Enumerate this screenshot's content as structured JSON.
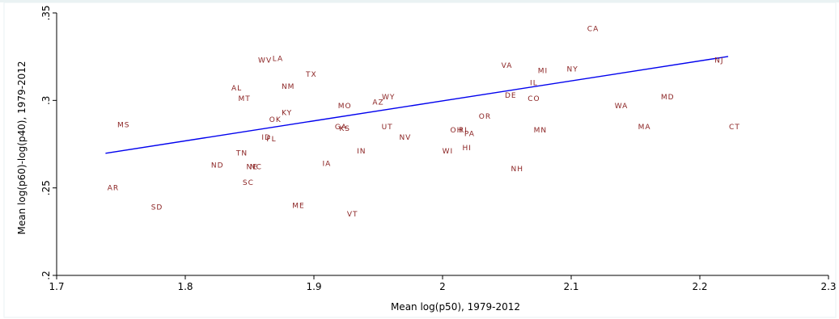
{
  "chart_data": {
    "type": "scatter",
    "title": "",
    "xlabel": "Mean log(p50), 1979-2012",
    "ylabel": "Mean log(p60)-log(p40), 1979-2012",
    "xlim": [
      1.7,
      2.3
    ],
    "ylim": [
      0.2,
      0.35
    ],
    "xticks": [
      1.7,
      1.8,
      1.9,
      2.0,
      2.1,
      2.2,
      2.3
    ],
    "xtick_labels": [
      "1.7",
      "1.8",
      "1.9",
      "2",
      "2.1",
      "2.2",
      "2.3"
    ],
    "yticks": [
      0.2,
      0.25,
      0.3,
      0.35
    ],
    "ytick_labels": [
      ".2",
      ".25",
      ".3",
      ".35"
    ],
    "grid": false,
    "legend": "none",
    "colors": {
      "markers": "#8b2323",
      "fit_line": "#0000ee",
      "axes": "#000000"
    },
    "points": [
      {
        "label": "CA",
        "x": 2.117,
        "y": 0.341
      },
      {
        "label": "NJ",
        "x": 2.215,
        "y": 0.323
      },
      {
        "label": "NY",
        "x": 2.101,
        "y": 0.318
      },
      {
        "label": "MI",
        "x": 2.078,
        "y": 0.317
      },
      {
        "label": "VA",
        "x": 2.05,
        "y": 0.32
      },
      {
        "label": "IL",
        "x": 2.071,
        "y": 0.31
      },
      {
        "label": "DE",
        "x": 2.053,
        "y": 0.303
      },
      {
        "label": "CO",
        "x": 2.071,
        "y": 0.301
      },
      {
        "label": "MD",
        "x": 2.175,
        "y": 0.302
      },
      {
        "label": "WA",
        "x": 2.139,
        "y": 0.297
      },
      {
        "label": "CT",
        "x": 2.227,
        "y": 0.285
      },
      {
        "label": "MA",
        "x": 2.157,
        "y": 0.285
      },
      {
        "label": "MN",
        "x": 2.076,
        "y": 0.283
      },
      {
        "label": "OR",
        "x": 2.033,
        "y": 0.291
      },
      {
        "label": "OH",
        "x": 2.011,
        "y": 0.283
      },
      {
        "label": "RI",
        "x": 2.016,
        "y": 0.283
      },
      {
        "label": "PA",
        "x": 2.021,
        "y": 0.281
      },
      {
        "label": "HI",
        "x": 2.019,
        "y": 0.273
      },
      {
        "label": "WI",
        "x": 2.004,
        "y": 0.271
      },
      {
        "label": "NH",
        "x": 2.058,
        "y": 0.261
      },
      {
        "label": "WY",
        "x": 1.958,
        "y": 0.302
      },
      {
        "label": "AZ",
        "x": 1.95,
        "y": 0.299
      },
      {
        "label": "UT",
        "x": 1.957,
        "y": 0.285
      },
      {
        "label": "NV",
        "x": 1.971,
        "y": 0.279
      },
      {
        "label": "IN",
        "x": 1.937,
        "y": 0.271
      },
      {
        "label": "MO",
        "x": 1.924,
        "y": 0.297
      },
      {
        "label": "GA",
        "x": 1.921,
        "y": 0.285
      },
      {
        "label": "KS",
        "x": 1.924,
        "y": 0.284
      },
      {
        "label": "TX",
        "x": 1.898,
        "y": 0.315
      },
      {
        "label": "NM",
        "x": 1.88,
        "y": 0.308
      },
      {
        "label": "KY",
        "x": 1.879,
        "y": 0.293
      },
      {
        "label": "OK",
        "x": 1.87,
        "y": 0.289
      },
      {
        "label": "WV",
        "x": 1.862,
        "y": 0.323
      },
      {
        "label": "LA",
        "x": 1.872,
        "y": 0.324
      },
      {
        "label": "AL",
        "x": 1.84,
        "y": 0.307
      },
      {
        "label": "MT",
        "x": 1.846,
        "y": 0.301
      },
      {
        "label": "ID",
        "x": 1.863,
        "y": 0.279
      },
      {
        "label": "FL",
        "x": 1.867,
        "y": 0.278
      },
      {
        "label": "IA",
        "x": 1.91,
        "y": 0.264
      },
      {
        "label": "TN",
        "x": 1.844,
        "y": 0.27
      },
      {
        "label": "ND",
        "x": 1.825,
        "y": 0.263
      },
      {
        "label": "NE",
        "x": 1.852,
        "y": 0.262
      },
      {
        "label": "NC",
        "x": 1.855,
        "y": 0.262
      },
      {
        "label": "SC",
        "x": 1.849,
        "y": 0.253
      },
      {
        "label": "ME",
        "x": 1.888,
        "y": 0.24
      },
      {
        "label": "VT",
        "x": 1.93,
        "y": 0.235
      },
      {
        "label": "MS",
        "x": 1.752,
        "y": 0.286
      },
      {
        "label": "AR",
        "x": 1.744,
        "y": 0.25
      },
      {
        "label": "SD",
        "x": 1.778,
        "y": 0.239
      }
    ],
    "fit_line": {
      "x": [
        1.738,
        2.222
      ],
      "y": [
        0.2698,
        0.3251
      ]
    }
  }
}
